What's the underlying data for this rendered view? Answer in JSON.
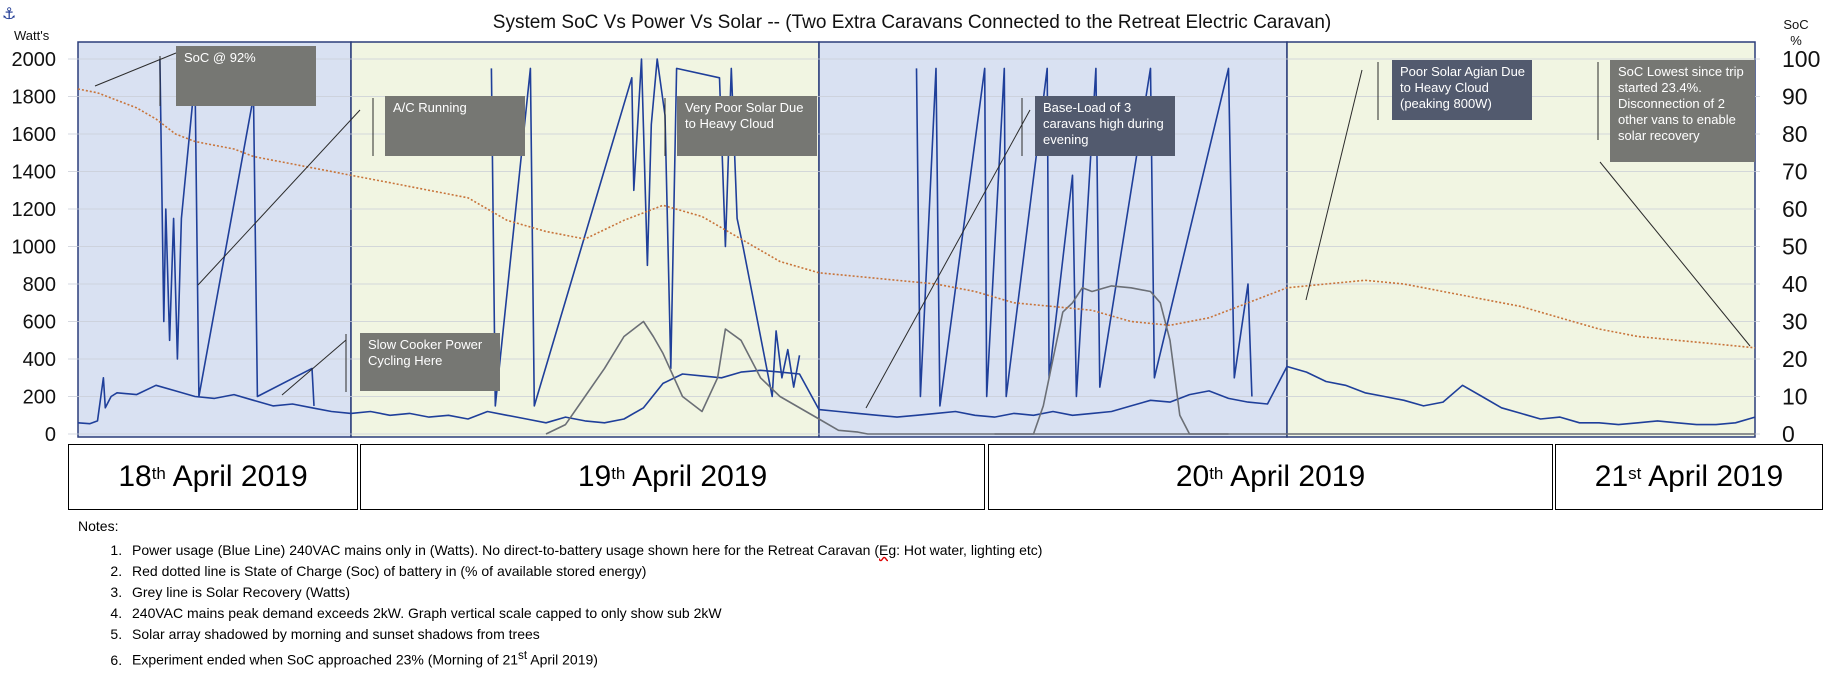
{
  "chart_data": {
    "type": "line",
    "title": "System SoC Vs Power Vs Solar  --   (Two Extra Caravans Connected to the Retreat Electric Caravan)",
    "y_left_label": "Watt's",
    "y_right_label": [
      "SoC",
      "%"
    ],
    "y_left_ticks": [
      "0",
      "200",
      "400",
      "600",
      "800",
      "1000",
      "1200",
      "1400",
      "1600",
      "1800",
      "2000"
    ],
    "y_right_ticks": [
      "0",
      "10",
      "20",
      "30",
      "40",
      "50",
      "60",
      "70",
      "80",
      "90",
      "100"
    ],
    "ylim_left": [
      0,
      2000
    ],
    "ylim_right": [
      0,
      100
    ],
    "grid": true,
    "legend": "none",
    "x_range_hours": [
      10,
      96
    ],
    "day_bands": [
      {
        "start": 10,
        "end": 24,
        "color": "#d9e1f2"
      },
      {
        "start": 24,
        "end": 48,
        "color": "#f1f5e2"
      },
      {
        "start": 48,
        "end": 72,
        "color": "#d9e1f2"
      },
      {
        "start": 72,
        "end": 96,
        "color": "#f1f5e2"
      }
    ],
    "series": [
      {
        "axis": "left",
        "color": "#1f3f9a",
        "x": [
          10,
          10.6,
          11,
          11.3,
          11.4,
          11.7,
          12,
          13,
          14,
          15,
          16,
          17,
          18,
          19,
          20,
          21,
          22,
          23,
          24,
          25,
          26,
          27,
          28,
          29,
          30,
          31,
          32,
          33,
          34,
          35,
          36,
          37,
          38,
          39,
          40,
          41,
          42,
          43,
          44,
          45,
          46,
          47,
          48,
          49,
          50,
          51,
          52,
          53,
          54,
          55,
          56,
          57,
          58,
          59,
          60,
          61,
          62,
          63,
          64,
          65,
          66,
          67,
          68,
          69,
          70,
          71,
          72,
          73,
          74,
          75,
          76,
          77,
          78,
          79,
          80,
          81,
          82,
          83,
          84,
          85,
          86,
          87,
          88,
          89,
          90,
          91,
          92,
          93,
          94,
          95,
          96
        ],
        "y": [
          60,
          55,
          70,
          300,
          140,
          200,
          220,
          210,
          260,
          230,
          200,
          190,
          210,
          180,
          150,
          160,
          140,
          120,
          110,
          120,
          100,
          110,
          90,
          100,
          80,
          120,
          100,
          80,
          60,
          90,
          70,
          60,
          80,
          140,
          270,
          320,
          310,
          300,
          330,
          340,
          330,
          320,
          130,
          120,
          110,
          100,
          90,
          100,
          110,
          120,
          100,
          90,
          110,
          100,
          120,
          100,
          110,
          120,
          150,
          180,
          170,
          210,
          230,
          190,
          170,
          160,
          360,
          330,
          280,
          260,
          220,
          200,
          180,
          150,
          170,
          260,
          200,
          140,
          110,
          80,
          90,
          60,
          60,
          50,
          60,
          70,
          60,
          50,
          50,
          60,
          90
        ]
      },
      {
        "axis": "left",
        "color": "#1f3f9a",
        "x": [
          14.2,
          14.4,
          14.5,
          14.7,
          14.9,
          15.1,
          15.3,
          16,
          16.2,
          19,
          19.2,
          22,
          22.1
        ],
        "y": [
          2000,
          600,
          1200,
          500,
          1150,
          400,
          1150,
          1900,
          200,
          1800,
          200,
          350,
          150
        ]
      },
      {
        "axis": "left",
        "color": "#1f3f9a",
        "x": [
          31.2,
          31.4,
          33.2,
          33.4,
          38.4,
          38.5,
          38.9,
          39.2,
          39.4,
          39.7,
          40.1,
          40.4,
          40.7,
          42.9,
          43.2,
          43.5,
          43.8,
          44.1,
          45.6,
          45.8,
          46.1,
          46.4,
          46.7,
          47
        ],
        "y": [
          1950,
          150,
          1950,
          150,
          1900,
          1300,
          2000,
          900,
          1650,
          2000,
          1700,
          350,
          1950,
          1900,
          1000,
          1950,
          1150,
          1000,
          200,
          550,
          300,
          450,
          250,
          420
        ]
      },
      {
        "axis": "left",
        "color": "#1f3f9a",
        "x": [
          53,
          53.2,
          54,
          54.2,
          56.5,
          56.6,
          57.5,
          57.6,
          59.7,
          59.8,
          61,
          61.2,
          62.2,
          62.4,
          65,
          65.2,
          69,
          69.3,
          70,
          70.2
        ],
        "y": [
          1950,
          200,
          1950,
          150,
          1950,
          200,
          1950,
          200,
          1950,
          300,
          1380,
          200,
          1950,
          250,
          1950,
          300,
          1950,
          300,
          800,
          200
        ]
      },
      {
        "axis": "left",
        "color": "#6b6f76",
        "x": [
          34,
          35,
          36,
          37,
          38,
          39,
          39.5,
          40,
          41,
          42,
          42.8,
          43.2,
          44,
          45,
          46,
          48,
          49,
          50,
          50.5,
          51,
          52,
          53,
          54,
          56,
          57,
          58,
          58.5,
          59,
          59.2,
          60,
          60.5,
          61,
          61.5,
          62,
          62.5,
          63,
          64,
          65,
          66,
          67,
          68,
          69,
          70,
          71,
          72,
          73,
          74,
          75,
          76,
          77,
          78,
          79,
          80,
          82,
          84,
          86,
          88,
          90,
          92,
          94,
          96
        ],
        "y": [
          0,
          50,
          200,
          350,
          520,
          600,
          520,
          430,
          200,
          120,
          300,
          560,
          500,
          300,
          200,
          80,
          20,
          10,
          0,
          0,
          0,
          0,
          0,
          0,
          0,
          0,
          0,
          0,
          0,
          0,
          0,
          0,
          0,
          0,
          0,
          0,
          0,
          0,
          0,
          0,
          0,
          0,
          0,
          0,
          0,
          0,
          0,
          0,
          0,
          0,
          0,
          0,
          0,
          0,
          0,
          0,
          0,
          0,
          0,
          0,
          0
        ]
      },
      {
        "axis": "left",
        "color": "#6b6f76",
        "x": [
          57,
          58,
          59,
          59.5,
          60,
          60.5,
          61,
          61.5,
          62,
          63,
          64,
          65,
          65.5,
          66,
          66.5,
          67,
          68,
          69
        ],
        "y": [
          0,
          0,
          0,
          150,
          400,
          650,
          700,
          780,
          760,
          790,
          780,
          760,
          700,
          500,
          100,
          0,
          0,
          0
        ]
      },
      {
        "axis": "right",
        "color": "#c8743a",
        "dashed": true,
        "x": [
          10,
          11,
          12,
          13,
          14,
          15,
          16,
          17,
          18,
          19,
          20,
          21,
          22,
          23,
          24,
          26,
          28,
          30,
          32,
          34,
          36,
          38,
          40,
          42,
          44,
          46,
          48,
          50,
          52,
          54,
          56,
          58,
          60,
          62,
          64,
          66,
          68,
          70,
          72,
          74,
          76,
          78,
          80,
          82,
          84,
          86,
          88,
          90,
          92,
          94,
          96
        ],
        "y": [
          92,
          91,
          89,
          87,
          84,
          80,
          78,
          77,
          76,
          74,
          73,
          72,
          71,
          70,
          69,
          67,
          65,
          63,
          57,
          54,
          52,
          57,
          61,
          58,
          52,
          46,
          43,
          42,
          41,
          40,
          38,
          35,
          34,
          33,
          30,
          29,
          31,
          35,
          39,
          40,
          41,
          40,
          38,
          36,
          34,
          31,
          28,
          26,
          25,
          24,
          23
        ]
      }
    ],
    "annotations": [
      {
        "text": [
          "SoC @ 92%"
        ]
      },
      {
        "text": [
          "A/C Running"
        ]
      },
      {
        "text": [
          "Very Poor Solar Due",
          "to Heavy Cloud"
        ]
      },
      {
        "text": [
          "Base-Load of 3",
          "caravans high during",
          "evening"
        ]
      },
      {
        "text": [
          "Poor Solar Agian Due",
          "to Heavy Cloud",
          "(peaking 800W)"
        ]
      },
      {
        "text": [
          "SoC Lowest since trip",
          "started 23.4%.",
          "Disconnection of 2",
          "other vans to enable",
          "solar recovery"
        ]
      },
      {
        "text": [
          "Slow Cooker Power",
          "Cycling Here"
        ]
      }
    ]
  },
  "day_labels": [
    {
      "day": "18",
      "suffix": "th",
      "rest": " April 2019"
    },
    {
      "day": "19",
      "suffix": "th",
      "rest": " April 2019"
    },
    {
      "day": "20",
      "suffix": "th",
      "rest": " April 2019"
    },
    {
      "day": "21",
      "suffix": "st",
      "rest": " April 2019"
    }
  ],
  "notes": {
    "title": "Notes:",
    "items": [
      {
        "number": "1.",
        "before": "Power usage (Blue Line) 240VAC mains only in (Watts). No direct-to-battery usage shown here for the Retreat Caravan (",
        "flagged": "Eg",
        "after": ": Hot water, lighting etc)"
      },
      {
        "number": "2.",
        "text": "Red dotted line is State of Charge (Soc) of battery in (% of available stored energy)"
      },
      {
        "number": "3.",
        "text": "Grey line is Solar Recovery (Watts)"
      },
      {
        "number": "4.",
        "text": "240VAC mains peak demand exceeds 2kW. Graph vertical scale capped to only show sub 2kW"
      },
      {
        "number": "5.",
        "text": "Solar array shadowed by morning and sunset shadows from trees"
      },
      {
        "number": "6.",
        "before": "Experiment ended when SoC approached 23% (Morning of 21",
        "sup": "st",
        "after": " April 2019)"
      }
    ]
  }
}
